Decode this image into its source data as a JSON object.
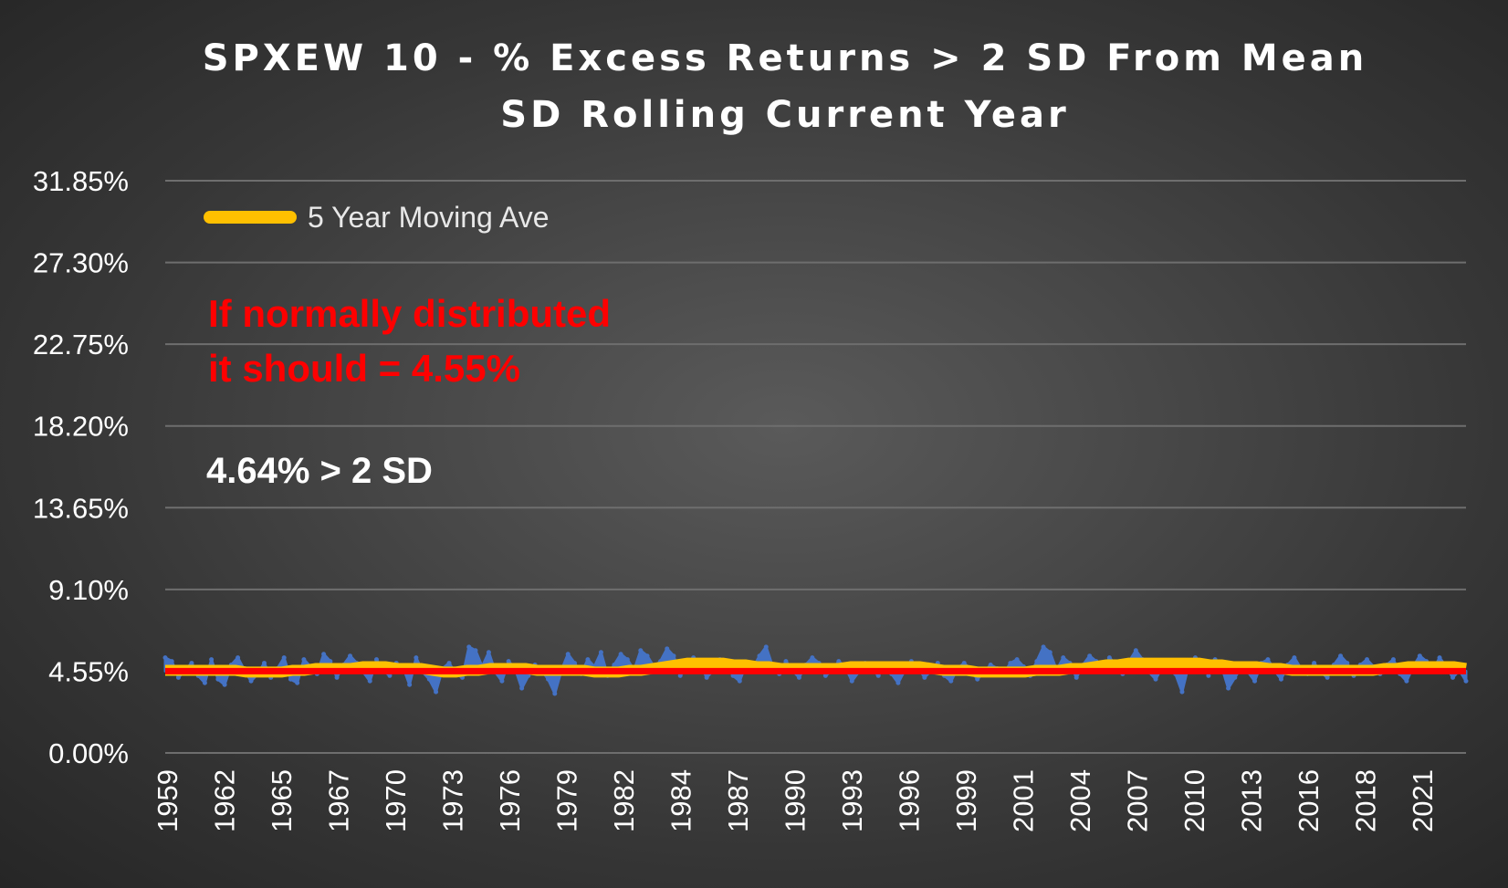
{
  "chart_data": {
    "type": "area",
    "title": "SPXEW 10 - % Excess Returns > 2 SD From Mean",
    "subtitle": "SD Rolling Current Year",
    "xlabel": "",
    "ylabel": "",
    "ylim": [
      0,
      31.85
    ],
    "y_ticks": [
      "0.00%",
      "4.55%",
      "9.10%",
      "13.65%",
      "18.20%",
      "22.75%",
      "27.30%",
      "31.85%"
    ],
    "y_tick_values": [
      0,
      4.55,
      9.1,
      13.65,
      18.2,
      22.75,
      27.3,
      31.85
    ],
    "x_ticks": [
      "1959",
      "1962",
      "1965",
      "1967",
      "1970",
      "1973",
      "1976",
      "1979",
      "1982",
      "1984",
      "1987",
      "1990",
      "1993",
      "1996",
      "1999",
      "2001",
      "2004",
      "2007",
      "2010",
      "2013",
      "2016",
      "2018",
      "2021"
    ],
    "grid": true,
    "legend_position": "top-left",
    "legend": [
      {
        "name": "5 Year Moving Ave",
        "color": "#ffc000"
      }
    ],
    "annotations": {
      "normal_line1": "If normally distributed",
      "normal_line2": "it should = 4.55%",
      "observed": "4.64% > 2 SD"
    },
    "reference_line": {
      "value": 4.55,
      "color": "#ff0000"
    },
    "series": [
      {
        "color": "#4472c4",
        "kind": "area",
        "values": [
          5.3,
          5.1,
          4.2,
          4.6,
          5.0,
          4.3,
          3.9,
          5.2,
          4.1,
          3.8,
          4.9,
          5.3,
          4.6,
          4.0,
          4.4,
          5.0,
          4.2,
          4.7,
          5.3,
          4.1,
          3.9,
          5.2,
          4.8,
          4.4,
          5.5,
          5.1,
          4.2,
          4.9,
          5.4,
          5.0,
          4.5,
          4.0,
          5.2,
          4.6,
          4.3,
          5.0,
          4.8,
          3.8,
          5.3,
          4.5,
          4.1,
          3.4,
          4.7,
          5.0,
          4.4,
          4.2,
          5.9,
          5.7,
          4.8,
          5.6,
          4.5,
          4.0,
          5.1,
          4.7,
          3.6,
          4.3,
          4.9,
          4.6,
          4.1,
          3.3,
          4.6,
          5.5,
          5.0,
          4.4,
          5.2,
          4.8,
          5.6,
          4.3,
          4.9,
          5.5,
          5.2,
          4.6,
          5.7,
          5.4,
          4.8,
          5.1,
          5.8,
          5.4,
          4.3,
          4.8,
          5.3,
          5.0,
          4.2,
          4.6,
          5.2,
          4.9,
          4.3,
          4.0,
          5.0,
          4.7,
          5.4,
          5.9,
          4.8,
          4.4,
          5.1,
          4.6,
          4.2,
          4.9,
          5.3,
          5.0,
          4.3,
          4.6,
          5.1,
          4.8,
          4.0,
          4.5,
          5.0,
          4.7,
          4.3,
          4.9,
          4.4,
          3.9,
          4.6,
          5.1,
          4.8,
          4.2,
          4.6,
          5.0,
          4.3,
          4.0,
          4.7,
          5.0,
          4.6,
          4.1,
          4.5,
          4.9,
          4.7,
          4.4,
          5.0,
          5.2,
          4.8,
          4.3,
          5.1,
          5.9,
          5.6,
          4.6,
          5.3,
          5.0,
          4.2,
          4.9,
          5.4,
          5.1,
          4.6,
          5.3,
          4.9,
          4.4,
          5.1,
          5.7,
          5.2,
          4.5,
          4.1,
          4.8,
          5.0,
          4.4,
          3.4,
          4.9,
          5.3,
          5.1,
          4.3,
          5.2,
          4.8,
          3.6,
          4.2,
          4.8,
          4.5,
          4.0,
          5.0,
          5.2,
          4.6,
          4.1,
          4.9,
          5.3,
          4.7,
          4.4,
          5.0,
          4.5,
          4.2,
          4.9,
          5.4,
          5.0,
          4.3,
          4.9,
          5.2,
          4.8,
          4.4,
          4.9,
          5.2,
          4.4,
          4.0,
          4.8,
          5.4,
          5.1,
          4.6,
          5.3,
          4.8,
          4.2,
          4.6,
          4.0
        ]
      },
      {
        "name": "5 Year Moving Ave",
        "color": "#ffc000",
        "kind": "line",
        "values": [
          4.6,
          4.6,
          4.6,
          4.6,
          4.6,
          4.6,
          4.6,
          4.5,
          4.5,
          4.5,
          4.5,
          4.6,
          4.6,
          4.7,
          4.7,
          4.7,
          4.7,
          4.8,
          4.8,
          4.8,
          4.7,
          4.7,
          4.7,
          4.6,
          4.5,
          4.5,
          4.6,
          4.6,
          4.7,
          4.7,
          4.7,
          4.7,
          4.6,
          4.6,
          4.6,
          4.6,
          4.6,
          4.5,
          4.5,
          4.5,
          4.6,
          4.6,
          4.7,
          4.8,
          4.9,
          5.0,
          5.0,
          5.0,
          5.0,
          4.9,
          4.9,
          4.8,
          4.8,
          4.7,
          4.7,
          4.7,
          4.7,
          4.7,
          4.7,
          4.8,
          4.8,
          4.8,
          4.8,
          4.8,
          4.8,
          4.8,
          4.7,
          4.6,
          4.6,
          4.6,
          4.5,
          4.5,
          4.5,
          4.5,
          4.5,
          4.6,
          4.6,
          4.6,
          4.7,
          4.7,
          4.8,
          4.9,
          4.9,
          5.0,
          5.0,
          5.0,
          5.0,
          5.0,
          5.0,
          5.0,
          4.9,
          4.9,
          4.8,
          4.8,
          4.8,
          4.7,
          4.7,
          4.6,
          4.6,
          4.6,
          4.6,
          4.6,
          4.6,
          4.6,
          4.6,
          4.7,
          4.7,
          4.8,
          4.8,
          4.8,
          4.8,
          4.8,
          4.7
        ]
      }
    ]
  }
}
